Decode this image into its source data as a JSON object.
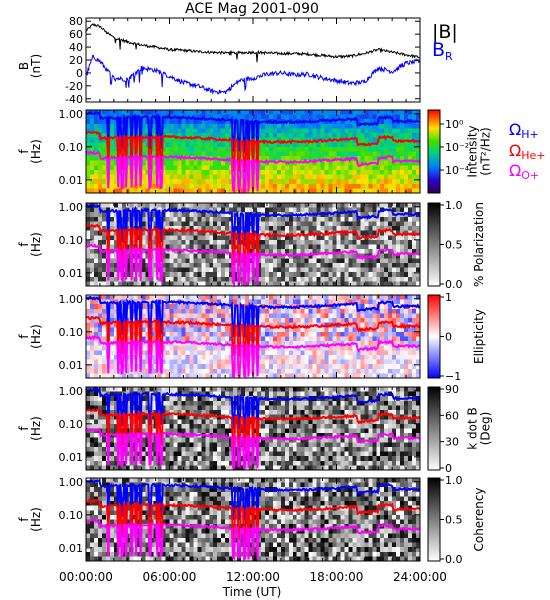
{
  "title": "ACE Mag 2001-090",
  "time_axis": {
    "label": "Time (UT)",
    "ticks": [
      "00:00:00",
      "06:00:00",
      "12:00:00",
      "18:00:00",
      "24:00:00"
    ]
  },
  "colors": {
    "total_field": "#000000",
    "radial_field": "#0000ff",
    "h_plus": "#0000ff",
    "he_plus": "#ff0000",
    "o_plus": "#ff00ff"
  },
  "chart_data": [
    {
      "type": "line",
      "ylabel": "B",
      "yunit": "(nT)",
      "ylim": [
        -45,
        85
      ],
      "yticks": [
        "80",
        "60",
        "40",
        "20",
        "0",
        "-20",
        "-40"
      ],
      "xlim": [
        0,
        24
      ],
      "legend": [
        "|B|",
        "BR"
      ],
      "legend_display": {
        "B": "|B|",
        "BR_main": "B",
        "BR_sub": "R"
      },
      "series": [
        {
          "name": "|B|",
          "x": [
            0,
            0.5,
            1,
            1.5,
            2,
            3,
            4,
            5,
            6,
            7,
            8,
            9,
            10,
            11,
            12,
            13,
            14,
            15,
            16,
            17,
            18,
            19,
            20,
            21,
            22,
            23,
            24
          ],
          "y": [
            65,
            75,
            72,
            62,
            55,
            48,
            43,
            40,
            36,
            35,
            33,
            32,
            31,
            31,
            32,
            31,
            30,
            30,
            29,
            27,
            25,
            26,
            30,
            36,
            32,
            28,
            24
          ]
        },
        {
          "name": "BR",
          "x": [
            0,
            0.5,
            1,
            1.5,
            2,
            3,
            4,
            5,
            6,
            7,
            8,
            9,
            10,
            11,
            12,
            13,
            14,
            15,
            16,
            17,
            18,
            19,
            20,
            21,
            22,
            23,
            24
          ],
          "y": [
            -5,
            25,
            18,
            5,
            -8,
            -10,
            8,
            4,
            -5,
            -15,
            -20,
            -28,
            -30,
            -12,
            -8,
            -2,
            0,
            -3,
            -2,
            -8,
            -12,
            -16,
            -14,
            8,
            2,
            15,
            18
          ]
        }
      ]
    },
    {
      "type": "heatmap",
      "ylabel": "f",
      "yunit": "(Hz)",
      "yticks": [
        "1.00",
        "0.10",
        "0.01"
      ],
      "colorbar_label": [
        "Intensity",
        "(nT²/Hz)"
      ],
      "colorbar_ticks": [
        "10⁰",
        "10⁻²",
        "10⁻⁴"
      ],
      "colorbar_range": [
        -5,
        1
      ],
      "lines": [
        "ΩH+",
        "ΩHe+",
        "ΩO+"
      ]
    },
    {
      "type": "heatmap",
      "ylabel": "f",
      "yunit": "(Hz)",
      "yticks": [
        "1.00",
        "0.10",
        "0.01"
      ],
      "colorbar_label": [
        "% Polarization"
      ],
      "colorbar_ticks": [
        "1.0",
        "0.5",
        "0.0"
      ],
      "colorbar_range": [
        0,
        1
      ]
    },
    {
      "type": "heatmap",
      "ylabel": "f",
      "yunit": "(Hz)",
      "yticks": [
        "1.00",
        "0.10",
        "0.01"
      ],
      "colorbar_label": [
        "Ellipticity"
      ],
      "colorbar_ticks": [
        "1",
        "0",
        "−1"
      ],
      "colorbar_range": [
        -1,
        1
      ]
    },
    {
      "type": "heatmap",
      "ylabel": "f",
      "yunit": "(Hz)",
      "yticks": [
        "1.00",
        "0.10",
        "0.01"
      ],
      "colorbar_label": [
        "k dot B",
        "(Deg)"
      ],
      "colorbar_ticks": [
        "90",
        "60",
        "30",
        "0"
      ],
      "colorbar_range": [
        0,
        90
      ]
    },
    {
      "type": "heatmap",
      "ylabel": "f",
      "yunit": "(Hz)",
      "yticks": [
        "1.00",
        "0.10",
        "0.01"
      ],
      "colorbar_label": [
        "Coherency"
      ],
      "colorbar_ticks": [
        "1.0",
        "0.5",
        "0.0"
      ],
      "colorbar_range": [
        0,
        1
      ]
    }
  ],
  "gyro_frequency_legend": [
    {
      "symbol": "Ω",
      "sub": "H+",
      "color": "#0000ff"
    },
    {
      "symbol": "Ω",
      "sub": "He+",
      "color": "#ff0000"
    },
    {
      "symbol": "Ω",
      "sub": "O+",
      "color": "#ff00ff"
    }
  ]
}
